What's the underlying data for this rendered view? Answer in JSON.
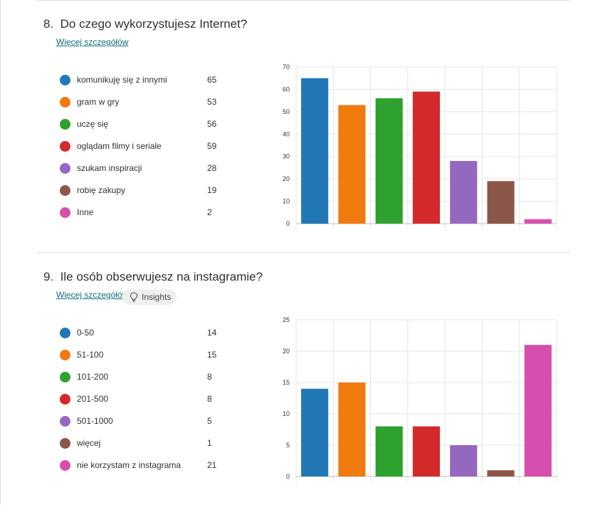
{
  "questions": [
    {
      "number": "8.",
      "title": "Do czego wykorzystujesz Internet?",
      "details_link": "Więcej szczegółów"
    },
    {
      "number": "9.",
      "title": "Ile osób obserwujesz na instagramie?",
      "details_link": "Więcej szczegółów",
      "insights_label": "Insights"
    }
  ],
  "chart_data": [
    {
      "type": "bar",
      "categories": [
        "komunikuję się z innymi",
        "gram w gry",
        "uczę się",
        "oglądam filmy i seriale",
        "szukam inspiracji",
        "robię zakupy",
        "Inne"
      ],
      "values": [
        65,
        53,
        56,
        59,
        28,
        19,
        2
      ],
      "colors": [
        "#2278b5",
        "#ef7b0f",
        "#2ea12e",
        "#d52a2b",
        "#9568c0",
        "#8c5649",
        "#d74fae"
      ],
      "ylim": [
        0,
        70
      ],
      "yticks": [
        0,
        10,
        20,
        30,
        40,
        50,
        60,
        70
      ],
      "grid": true,
      "legend": "left"
    },
    {
      "type": "bar",
      "categories": [
        "0-50",
        "51-100",
        "101-200",
        "201-500",
        "501-1000",
        "więcej",
        "nie korzystam z instagrama"
      ],
      "values": [
        14,
        15,
        8,
        8,
        5,
        1,
        21
      ],
      "colors": [
        "#2278b5",
        "#ef7b0f",
        "#2ea12e",
        "#d52a2b",
        "#9568c0",
        "#8c5649",
        "#d74fae"
      ],
      "ylim": [
        0,
        25
      ],
      "yticks": [
        0,
        5,
        10,
        15,
        20,
        25
      ],
      "grid": true,
      "legend": "left"
    }
  ]
}
